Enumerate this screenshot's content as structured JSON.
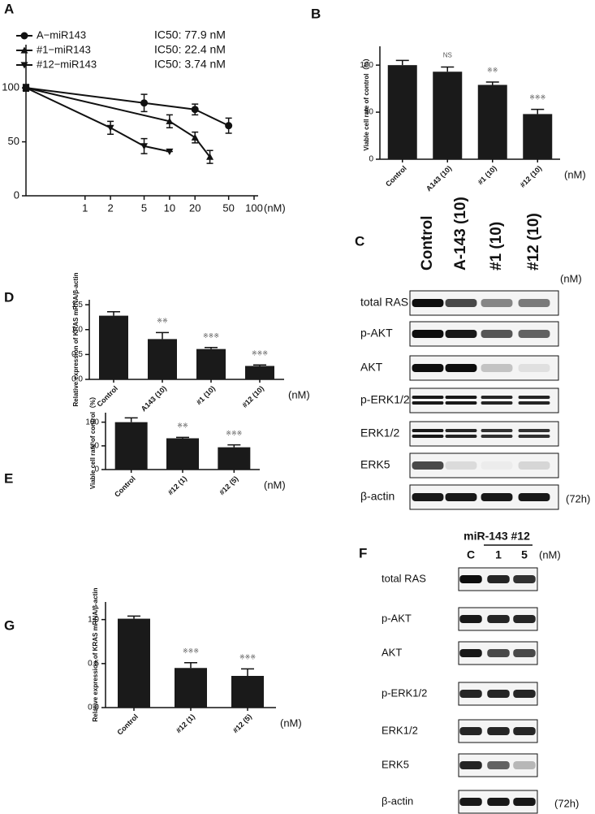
{
  "chart_data": [
    {
      "type": "line",
      "panel": "A",
      "log_x": true,
      "xlim": [
        0.2,
        100
      ],
      "ylim": [
        0,
        140
      ],
      "xticks": [
        1,
        2,
        5,
        10,
        20,
        50,
        100
      ],
      "yticks": [
        0,
        50,
        100
      ],
      "x_unit": "(nM)",
      "annotations": [
        "IC50: 77.9 nM",
        "IC50: 22.4 nM",
        "IC50: 3.74 nM"
      ],
      "series": [
        {
          "name": "A−miR143",
          "marker": "circle",
          "color": "#111111",
          "x": [
            0.2,
            5,
            20,
            50
          ],
          "values": [
            100,
            86,
            80,
            65
          ],
          "errors": [
            3,
            8,
            5,
            7
          ]
        },
        {
          "name": "#1−miR143",
          "marker": "triangle-up",
          "color": "#111111",
          "x": [
            0.2,
            10,
            20,
            30
          ],
          "values": [
            100,
            69,
            54,
            36
          ],
          "errors": [
            3,
            6,
            5,
            6
          ]
        },
        {
          "name": "#12−miR143",
          "marker": "triangle-down",
          "color": "#111111",
          "x": [
            0.2,
            2,
            5,
            10
          ],
          "values": [
            100,
            63,
            46,
            41
          ],
          "errors": [
            3,
            6,
            7,
            0
          ]
        }
      ]
    },
    {
      "type": "bar",
      "panel": "B",
      "ylabel": "Viable cell rate of control（%）",
      "x_unit": "(nM)",
      "categories": [
        "Control",
        "A143 (10)",
        "#1 (10)",
        "#12 (10)"
      ],
      "values": [
        100,
        93,
        79,
        48
      ],
      "errors": [
        5,
        5,
        3,
        5
      ],
      "annotations": [
        null,
        "NS",
        "※※",
        "※※※"
      ],
      "color": "#1a1a1a",
      "ylim": [
        0,
        120
      ],
      "yticks": [
        0,
        50,
        100
      ]
    },
    {
      "type": "bar",
      "panel": "D",
      "ylabel": "Relative expression of KRAS mRNA/β-actin",
      "x_unit": "(nM)",
      "categories": [
        "Control",
        "A143 (10)",
        "#1 (10)",
        "#12 (10)"
      ],
      "values": [
        1.28,
        0.81,
        0.61,
        0.27
      ],
      "errors": [
        0.08,
        0.13,
        0.03,
        0.02
      ],
      "annotations": [
        null,
        "※※",
        "※※※",
        "※※※"
      ],
      "color": "#1a1a1a",
      "ylim": [
        0,
        1.6
      ],
      "yticks": [
        {
          "value": 0,
          "label": "0.0"
        },
        0.5,
        {
          "value": 1,
          "label": "1.0"
        },
        1.5
      ]
    },
    {
      "type": "bar",
      "panel": "E",
      "ylabel": "Viable cell rate of control（%）",
      "x_unit": "(nM)",
      "categories": [
        "Control",
        "#12 (1)",
        "#12 (5)"
      ],
      "values": [
        100,
        66,
        47
      ],
      "errors": [
        9,
        2,
        5
      ],
      "annotations": [
        null,
        "※※",
        "※※※"
      ],
      "color": "#1a1a1a",
      "ylim": [
        0,
        120
      ],
      "yticks": [
        0,
        50,
        100
      ]
    },
    {
      "type": "bar",
      "panel": "G",
      "ylabel": "Relative expression of KRAS mRNA/β-actin",
      "x_unit": "(nM)",
      "categories": [
        "Control",
        "#12 (1)",
        "#12 (5)"
      ],
      "values": [
        1.01,
        0.45,
        0.36
      ],
      "errors": [
        0.03,
        0.06,
        0.08
      ],
      "annotations": [
        null,
        "※※※",
        "※※※"
      ],
      "color": "#1a1a1a",
      "ylim": [
        0,
        1.2
      ],
      "yticks": [
        {
          "value": 0,
          "label": "0.0"
        },
        0.5,
        {
          "value": 1,
          "label": "1.0"
        }
      ]
    }
  ],
  "blots": [
    {
      "panel": "C",
      "lanes": [
        "Control",
        "A-143 (10)",
        "#1 (10)",
        "#12 (10)"
      ],
      "unit": "(nM)",
      "time": "(72h)",
      "rows": [
        {
          "label": "total RAS",
          "bands": [
            0.95,
            0.7,
            0.45,
            0.5
          ]
        },
        {
          "label": "p-AKT",
          "bands": [
            0.95,
            0.9,
            0.65,
            0.6
          ]
        },
        {
          "label": "AKT",
          "bands": [
            0.95,
            0.95,
            0.2,
            0.08
          ]
        },
        {
          "label": "p-ERK1/2",
          "bands": [
            0.9,
            0.9,
            0.85,
            0.85
          ],
          "doublet": true
        },
        {
          "label": "ERK1/2",
          "bands": [
            0.9,
            0.85,
            0.8,
            0.8
          ],
          "doublet": true
        },
        {
          "label": "ERK5",
          "bands": [
            0.7,
            0.1,
            0.03,
            0.12
          ]
        },
        {
          "label": "β-actin",
          "bands": [
            0.9,
            0.9,
            0.9,
            0.9
          ]
        }
      ]
    },
    {
      "panel": "F",
      "header": "miR-143 #12",
      "lanes": [
        "C",
        "1",
        "5"
      ],
      "unit": "(nM)",
      "time": "(72h)",
      "rows": [
        {
          "label": "total RAS",
          "bands": [
            0.95,
            0.85,
            0.8
          ]
        },
        {
          "label": "p-AKT",
          "bands": [
            0.9,
            0.85,
            0.85
          ]
        },
        {
          "label": "AKT",
          "bands": [
            0.9,
            0.7,
            0.7
          ]
        },
        {
          "label": "p-ERK1/2",
          "bands": [
            0.85,
            0.85,
            0.85
          ]
        },
        {
          "label": "ERK1/2",
          "bands": [
            0.85,
            0.85,
            0.85
          ]
        },
        {
          "label": "ERK5",
          "bands": [
            0.85,
            0.6,
            0.25
          ]
        },
        {
          "label": "β-actin",
          "bands": [
            0.9,
            0.9,
            0.9
          ]
        }
      ]
    }
  ]
}
